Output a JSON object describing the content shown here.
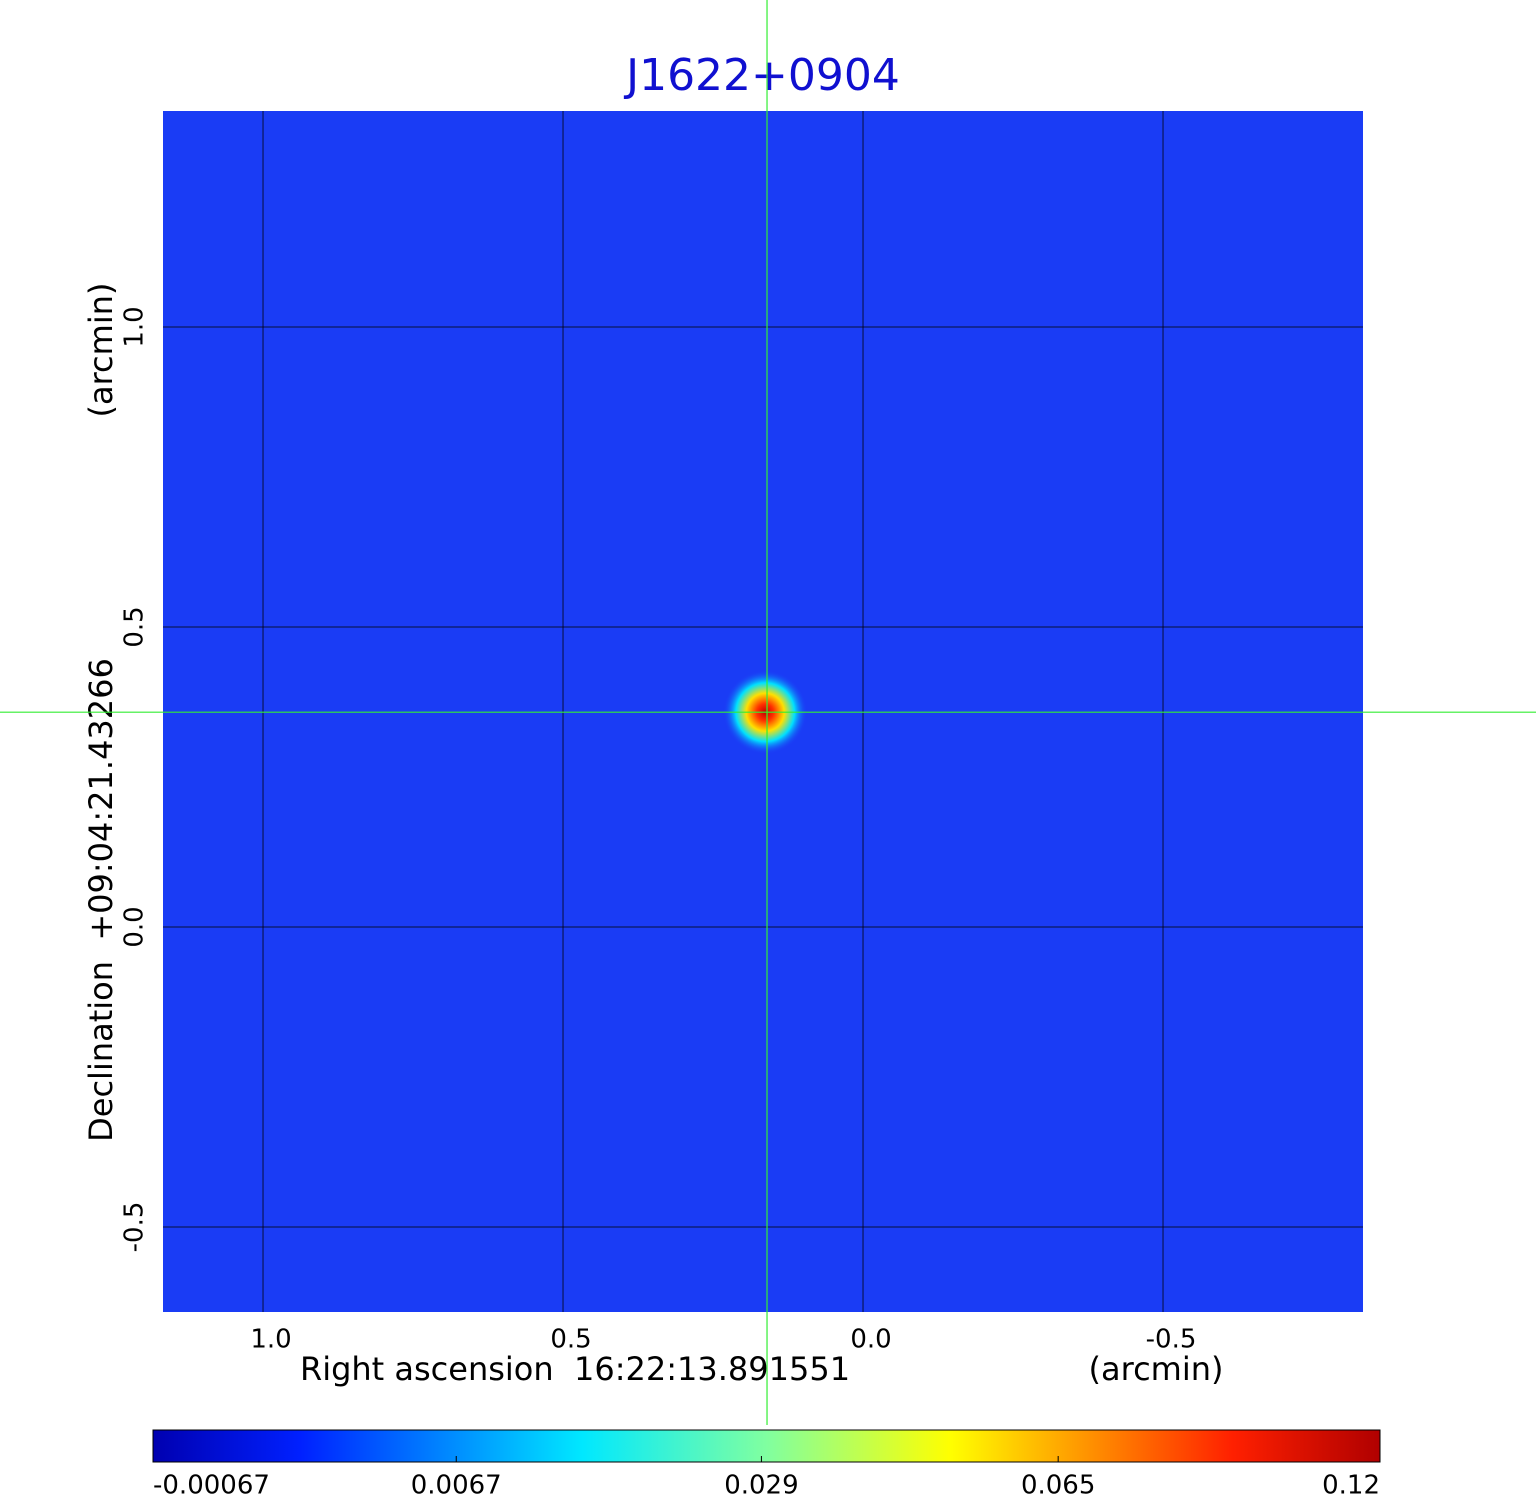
{
  "chart_data": {
    "type": "image",
    "title": "J1622+0904",
    "xlabel": "Right ascension  16:22:13.891551",
    "xunit": "(arcmin)",
    "ylabel": "Declination  +09:04:21.43266",
    "yunit": "(arcmin)",
    "xlim": [
      1.1667,
      -0.8333
    ],
    "ylim": [
      -0.6417,
      1.36
    ],
    "xticks": [
      {
        "value": 1,
        "label": "1.0"
      },
      0.5,
      {
        "value": 0,
        "label": "0.0"
      },
      -0.5
    ],
    "yticks": [
      {
        "value": 1,
        "label": "1.0"
      },
      0.5,
      {
        "value": 0,
        "label": "0.0"
      },
      -0.5
    ],
    "grid": true,
    "crosshair": {
      "x": 0.16,
      "y": 0.358
    },
    "sources": [
      {
        "x": 0.163,
        "y": 0.358,
        "peak": 0.12
      }
    ],
    "colorbar": {
      "lim": [
        -0.00067,
        0.12
      ],
      "scale": "sqrt",
      "colormap": "jet",
      "ticks": [
        -0.00067,
        0.0067,
        0.029,
        0.065,
        0.12
      ]
    }
  }
}
